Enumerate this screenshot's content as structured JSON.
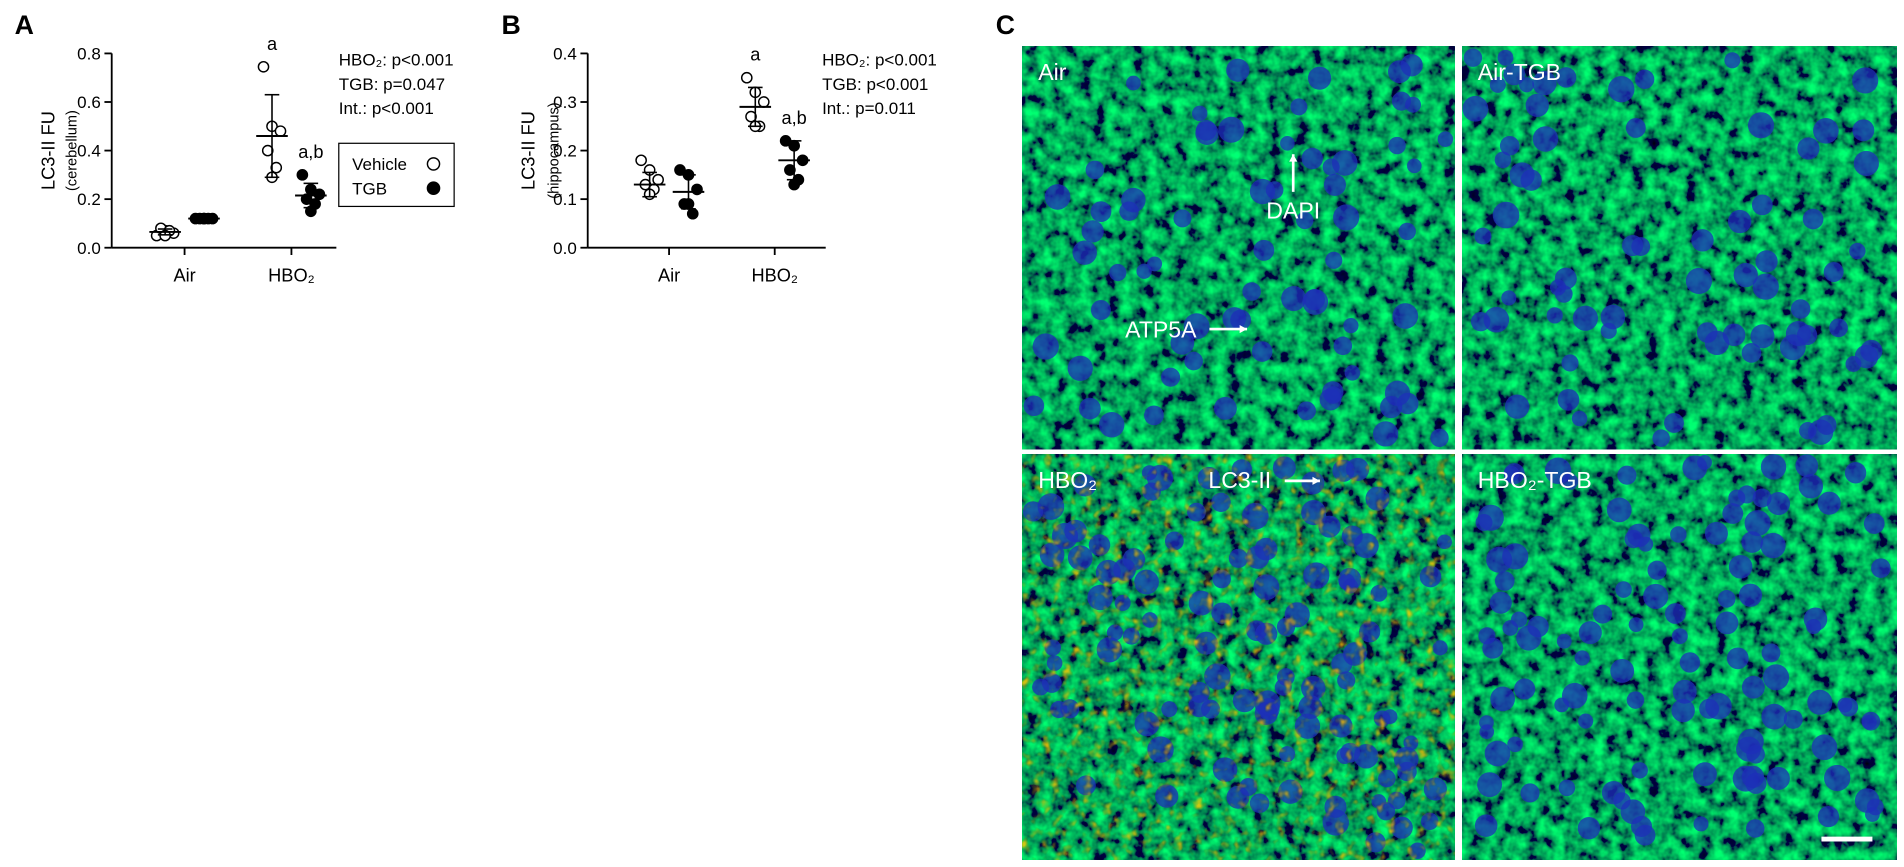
{
  "chart_data": [
    {
      "type": "dot",
      "panel": "A",
      "ylabel": "LC3-II FU",
      "ylabel_sub": "(cerebellum)",
      "categories": [
        "Air",
        "HBO₂"
      ],
      "ylim": [
        0,
        0.8
      ],
      "yticks": [
        {
          "value": 0,
          "label": "0.0"
        },
        0.2,
        0.4,
        0.6,
        0.8
      ],
      "stats": [
        "HBO₂: p<0.001",
        "TGB: p=0.047",
        "Int.: p<0.001"
      ],
      "legend": true,
      "series": [
        {
          "name": "Vehicle",
          "color": "#000000",
          "filled": false,
          "points": [
            [
              0.05,
              0.07,
              0.06,
              0.08,
              0.07,
              0.05
            ],
            [
              0.745,
              0.5,
              0.48,
              0.4,
              0.33,
              0.29
            ]
          ],
          "mean": [
            0.065,
            0.46
          ],
          "sd": [
            0.012,
            0.17
          ],
          "labels": [
            null,
            "a"
          ]
        },
        {
          "name": "TGB",
          "color": "#000000",
          "filled": true,
          "points": [
            [
              0.12,
              0.12,
              0.12,
              0.12,
              0.12,
              0.12
            ],
            [
              0.3,
              0.24,
              0.22,
              0.2,
              0.18,
              0.15
            ]
          ],
          "mean": [
            0.12,
            0.215
          ],
          "sd": [
            0.004,
            0.05
          ],
          "labels": [
            null,
            "a,b"
          ]
        }
      ]
    },
    {
      "type": "dot",
      "panel": "B",
      "ylabel": "LC3-II FU",
      "ylabel_sub": "(hippocampus)",
      "categories": [
        "Air",
        "HBO₂"
      ],
      "ylim": [
        0,
        0.4
      ],
      "yticks": [
        {
          "value": 0,
          "label": "0.0"
        },
        0.1,
        0.2,
        0.3,
        0.4
      ],
      "stats": [
        "HBO₂: p<0.001",
        "TGB: p<0.001",
        "Int.: p=0.011"
      ],
      "legend": false,
      "series": [
        {
          "name": "Vehicle",
          "color": "#000000",
          "filled": false,
          "points": [
            [
              0.18,
              0.16,
              0.14,
              0.13,
              0.12,
              0.11
            ],
            [
              0.35,
              0.32,
              0.3,
              0.27,
              0.25,
              0.25
            ]
          ],
          "mean": [
            0.13,
            0.29
          ],
          "sd": [
            0.025,
            0.04
          ],
          "labels": [
            null,
            "a"
          ]
        },
        {
          "name": "TGB",
          "color": "#000000",
          "filled": true,
          "points": [
            [
              0.16,
              0.15,
              0.12,
              0.09,
              0.07,
              0.09
            ],
            [
              0.22,
              0.21,
              0.18,
              0.16,
              0.14,
              0.13
            ]
          ],
          "mean": [
            0.115,
            0.18
          ],
          "sd": [
            0.035,
            0.04
          ],
          "labels": [
            null,
            "a,b"
          ]
        }
      ]
    }
  ],
  "panel_c": {
    "label": "C",
    "images": [
      {
        "label": "Air"
      },
      {
        "label": "Air-TGB"
      },
      {
        "label": "HBO₂"
      },
      {
        "label": "HBO₂-TGB"
      }
    ],
    "arrows": [
      {
        "label": "DAPI"
      },
      {
        "label": "ATP5A"
      },
      {
        "label": "LC3-II"
      }
    ]
  }
}
